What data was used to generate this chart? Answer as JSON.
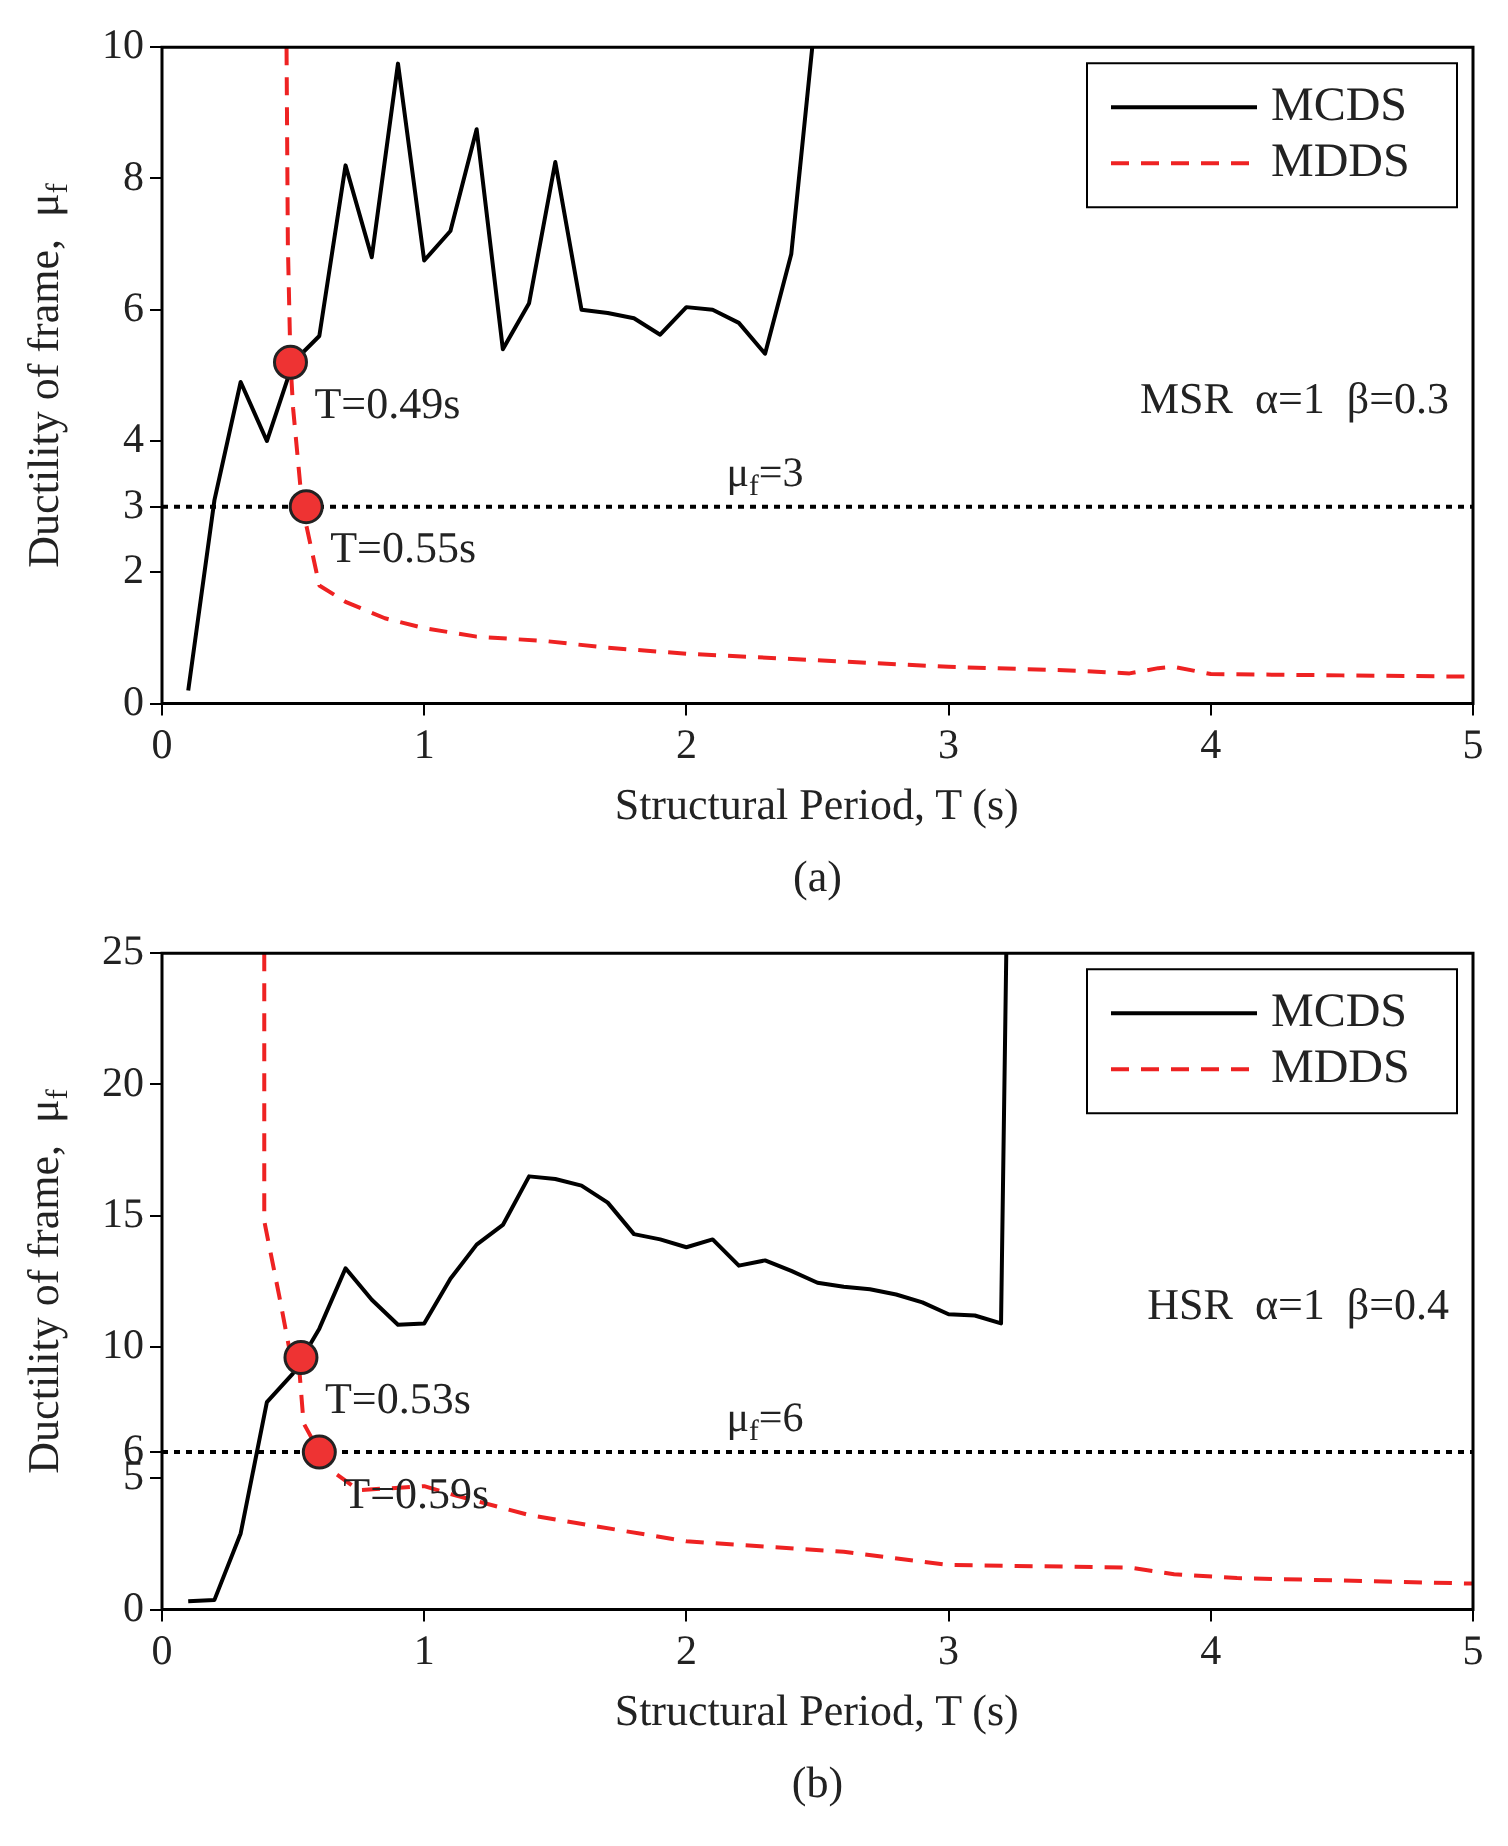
{
  "chart_data": [
    {
      "type": "line",
      "xlabel": "Structural Period, T (s)",
      "ylabel": "Ductility of frame,  μ$_{f}$",
      "xlim": [
        0,
        5
      ],
      "xticks": [
        0,
        1,
        2,
        3,
        4,
        5
      ],
      "ylim": [
        0,
        10
      ],
      "yticks": [
        0,
        2,
        3,
        4,
        6,
        8,
        10
      ],
      "grid": false,
      "legend": "top right",
      "marker": "none",
      "series": [
        {
          "name": "MCDS",
          "color": "#000000",
          "line_style": "solid",
          "x": [
            0.1,
            0.2,
            0.3,
            0.4,
            0.5,
            0.6,
            0.7,
            0.8,
            0.9,
            1.0,
            1.1,
            1.2,
            1.3,
            1.4,
            1.5,
            1.6,
            1.7,
            1.8,
            1.9,
            2.0,
            2.1,
            2.2,
            2.3,
            2.4,
            2.48
          ],
          "values": [
            0.2,
            3.1,
            4.9,
            4.0,
            5.2,
            5.6,
            8.2,
            6.8,
            9.75,
            6.75,
            7.2,
            8.75,
            5.4,
            6.1,
            8.25,
            6.0,
            5.95,
            5.87,
            5.62,
            6.04,
            6.0,
            5.8,
            5.33,
            6.85,
            10
          ]
        },
        {
          "name": "MDDS",
          "color": "#ee2222",
          "line_style": "dashed",
          "x": [
            0.475,
            0.48,
            0.49,
            0.5,
            0.535,
            0.6,
            0.7,
            0.85,
            1.0,
            1.2,
            1.47,
            1.7,
            2.0,
            2.5,
            3.0,
            3.5,
            3.69,
            3.8,
            3.86,
            4.0,
            4.5,
            5.0
          ],
          "values": [
            10,
            7,
            5.2,
            4.5,
            3,
            1.8,
            1.55,
            1.3,
            1.15,
            1.02,
            0.95,
            0.85,
            0.76,
            0.66,
            0.56,
            0.5,
            0.46,
            0.54,
            0.56,
            0.45,
            0.43,
            0.41
          ]
        },
        {
          "type": "scatter",
          "color": "#ee3333",
          "marker": "circle",
          "x": [
            0.49,
            0.55
          ],
          "values": [
            5.2,
            3
          ]
        }
      ],
      "ref_lines": [
        {
          "axis": "y",
          "value": 3,
          "label": "μ$_{f}$=3",
          "color": "#000000",
          "line_style": "dotted"
        }
      ],
      "annotations": [
        "MSR  α=1  β=0.3",
        {
          "text": "T=0.49s",
          "x": 0.49,
          "y": 5.2
        },
        {
          "text": "T=0.55s",
          "x": 0.55,
          "y": 3
        },
        "(a)"
      ]
    },
    {
      "type": "line",
      "xlabel": "Structural Period, T (s)",
      "ylabel": "Ductility of frame,  μ$_{f}$",
      "xlim": [
        0,
        5
      ],
      "xticks": [
        0,
        1,
        2,
        3,
        4,
        5
      ],
      "ylim": [
        0,
        25
      ],
      "yticks": [
        0,
        5,
        6,
        10,
        15,
        20,
        25
      ],
      "grid": false,
      "legend": "top right",
      "marker": "none",
      "series": [
        {
          "name": "MCDS",
          "color": "#000000",
          "line_style": "solid",
          "x": [
            0.1,
            0.2,
            0.3,
            0.4,
            0.5,
            0.6,
            0.7,
            0.8,
            0.9,
            1.0,
            1.1,
            1.2,
            1.3,
            1.4,
            1.5,
            1.6,
            1.7,
            1.8,
            1.9,
            2.0,
            2.1,
            2.2,
            2.3,
            2.4,
            2.5,
            2.6,
            2.7,
            2.8,
            2.9,
            3.0,
            3.1,
            3.2,
            3.22
          ],
          "values": [
            0.32,
            0.37,
            2.9,
            7.9,
            9.0,
            10.7,
            13.0,
            11.8,
            10.85,
            10.9,
            12.6,
            13.9,
            14.65,
            16.5,
            16.4,
            16.15,
            15.5,
            14.3,
            14.1,
            13.8,
            14.1,
            13.1,
            13.3,
            12.9,
            12.45,
            12.3,
            12.2,
            12.0,
            11.7,
            11.25,
            11.2,
            10.9,
            25
          ]
        },
        {
          "name": "MDDS",
          "color": "#ee2222",
          "line_style": "dashed",
          "x": [
            0.39,
            0.39,
            0.45,
            0.49,
            0.52,
            0.54,
            0.6,
            0.66,
            0.75,
            1.0,
            1.1,
            1.4,
            2.0,
            2.6,
            3.0,
            3.69,
            3.86,
            4.1,
            5.0
          ],
          "values": [
            25,
            14.8,
            11.8,
            9.7,
            9.6,
            7.1,
            6.0,
            5.2,
            4.55,
            4.7,
            4.4,
            3.6,
            2.6,
            2.2,
            1.7,
            1.6,
            1.35,
            1.2,
            0.99
          ]
        },
        {
          "type": "scatter",
          "color": "#ee3333",
          "marker": "circle",
          "x": [
            0.53,
            0.6
          ],
          "values": [
            9.6,
            6
          ]
        }
      ],
      "ref_lines": [
        {
          "axis": "y",
          "value": 6,
          "label": "μ$_{f}$=6",
          "color": "#000000",
          "line_style": "dotted"
        }
      ],
      "annotations": [
        "HSR  α=1  β=0.4",
        {
          "text": "T=0.53s",
          "x": 0.53,
          "y": 9.6
        },
        {
          "text": "T=0.59s",
          "x": 0.6,
          "y": 6
        },
        "(b)"
      ]
    }
  ]
}
